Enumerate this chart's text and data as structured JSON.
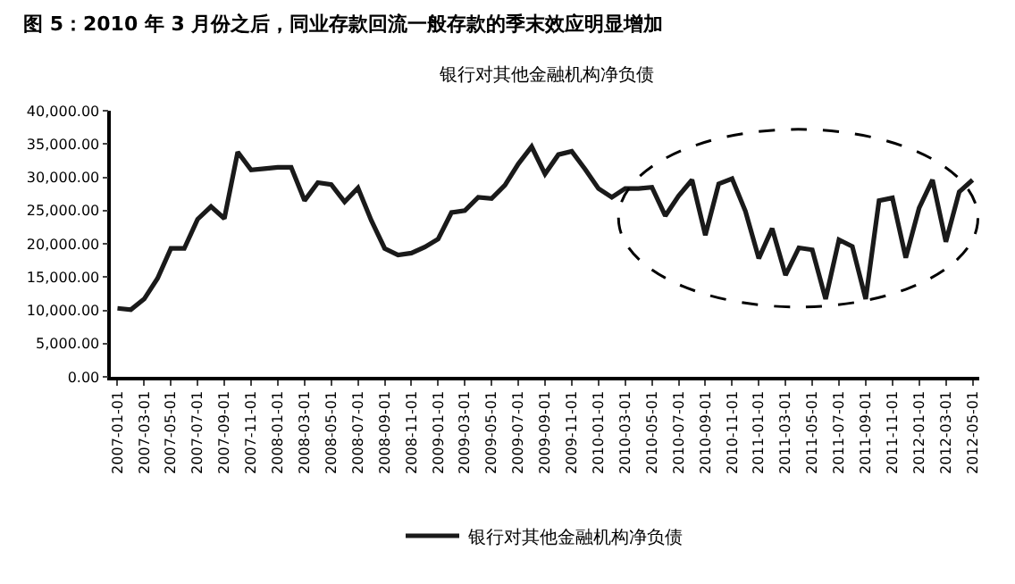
{
  "chart_data": {
    "type": "line",
    "title": "图 5：2010 年 3 月份之后，同业存款回流一般存款的季末效应明显增加",
    "subtitle": "银行对其他金融机构净负债",
    "categories": [
      "2007-01-01",
      null,
      "2007-03-01",
      null,
      "2007-05-01",
      null,
      "2007-07-01",
      null,
      "2007-09-01",
      null,
      "2007-11-01",
      null,
      "2008-01-01",
      null,
      "2008-03-01",
      null,
      "2008-05-01",
      null,
      "2008-07-01",
      null,
      "2008-09-01",
      null,
      "2008-11-01",
      null,
      "2009-01-01",
      null,
      "2009-03-01",
      null,
      "2009-05-01",
      null,
      "2009-07-01",
      null,
      "2009-09-01",
      null,
      "2009-11-01",
      null,
      "2010-01-01",
      null,
      "2010-03-01",
      null,
      "2010-05-01",
      null,
      "2010-07-01",
      null,
      "2010-09-01",
      null,
      "2010-11-01",
      null,
      "2011-01-01",
      null,
      "2011-03-01",
      null,
      "2011-05-01",
      null,
      "2011-07-01",
      null,
      "2011-09-01",
      null,
      "2011-11-01",
      null,
      "2012-01-01",
      null,
      "2012-03-01",
      null,
      "2012-05-01"
    ],
    "series": [
      {
        "name": "银行对其他金融机构净负债",
        "color": "#1a1a1a",
        "values": [
          10300,
          10100,
          11700,
          14800,
          19300,
          19300,
          23700,
          25600,
          23800,
          33800,
          31100,
          31300,
          31500,
          31500,
          26500,
          29200,
          28900,
          26300,
          28400,
          23500,
          19300,
          18300,
          18600,
          19500,
          20700,
          24700,
          25000,
          27000,
          26800,
          28800,
          32000,
          34600,
          30500,
          33400,
          33900,
          31200,
          28300,
          27000,
          28300,
          28300,
          28500,
          24200,
          27200,
          29600,
          21300,
          29000,
          29800,
          24900,
          17800,
          22300,
          15300,
          19400,
          19100,
          11700,
          20600,
          19600,
          11700,
          26500,
          26900,
          17900,
          25400,
          29600,
          20300,
          27800,
          29600
        ]
      }
    ],
    "ylim": [
      0,
      40000
    ],
    "yticks": [
      {
        "value": 0,
        "label": "0.00"
      },
      {
        "value": 5000,
        "label": "5,000.00"
      },
      {
        "value": 10000,
        "label": "10,000.00"
      },
      {
        "value": 15000,
        "label": "15,000.00"
      },
      {
        "value": 20000,
        "label": "20,000.00"
      },
      {
        "value": 25000,
        "label": "25,000.00"
      },
      {
        "value": 30000,
        "label": "30,000.00"
      },
      {
        "value": 35000,
        "label": "35,000.00"
      },
      {
        "value": 40000,
        "label": "40,000.00"
      }
    ],
    "legend": "bottom",
    "marker": "none",
    "line_style": "solid"
  }
}
